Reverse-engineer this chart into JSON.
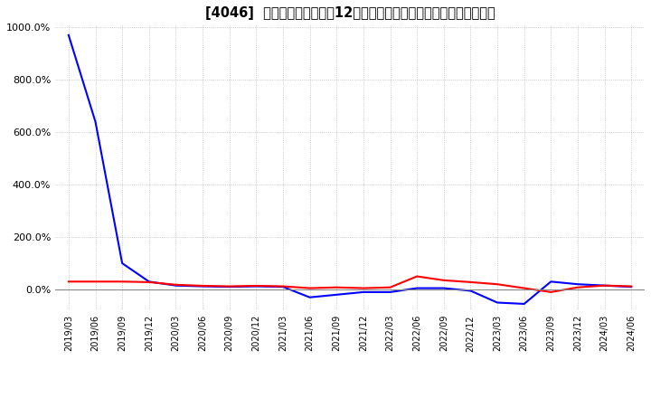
{
  "title": "[4046]  キャッシュフローの12か月移動合計の対前年同期増減率の推移",
  "background_color": "#ffffff",
  "grid_color": "#aaaaaa",
  "ylim": [
    -80,
    1010
  ],
  "yticks": [
    0,
    200,
    400,
    600,
    800,
    1000
  ],
  "ytick_labels": [
    "0.0%",
    "200.0%",
    "400.0%",
    "600.0%",
    "800.0%",
    "1000.0%"
  ],
  "series_eigyo": {
    "color": "#ff0000",
    "x": [
      0,
      1,
      2,
      3,
      4,
      5,
      6,
      7,
      8,
      9,
      10,
      11,
      12,
      13,
      14,
      15,
      16,
      17,
      18,
      19,
      20,
      21
    ],
    "y": [
      30,
      30,
      30,
      28,
      18,
      14,
      12,
      14,
      12,
      5,
      8,
      5,
      8,
      50,
      35,
      28,
      20,
      5,
      -10,
      8,
      15,
      12
    ]
  },
  "series_free": {
    "color": "#0000ff",
    "x": [
      0,
      1,
      2,
      3,
      4,
      5,
      6,
      7,
      8,
      9,
      10,
      11,
      12,
      13,
      14,
      15,
      16,
      17,
      18,
      19,
      20,
      21
    ],
    "y": [
      970,
      640,
      100,
      30,
      15,
      12,
      10,
      12,
      10,
      -30,
      -20,
      -10,
      -10,
      5,
      5,
      -5,
      -50,
      -55,
      30,
      20,
      15,
      10
    ]
  },
  "xtick_labels": [
    "2019/03",
    "2019/06",
    "2019/09",
    "2019/12",
    "2020/03",
    "2020/06",
    "2020/09",
    "2020/12",
    "2021/03",
    "2021/06",
    "2021/09",
    "2021/12",
    "2022/03",
    "2022/06",
    "2022/09",
    "2022/12",
    "2023/03",
    "2023/06",
    "2023/09",
    "2023/12",
    "2024/03",
    "2024/06"
  ],
  "legend_color_eigyo": "#ff0000",
  "legend_color_free": "#0000ff"
}
